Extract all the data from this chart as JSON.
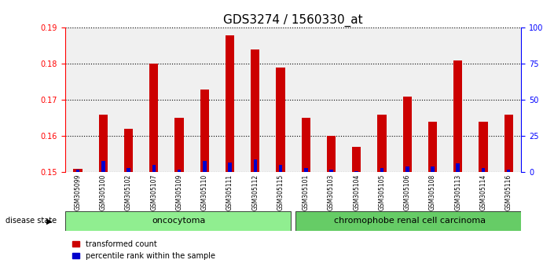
{
  "title": "GDS3274 / 1560330_at",
  "samples": [
    "GSM305099",
    "GSM305100",
    "GSM305102",
    "GSM305107",
    "GSM305109",
    "GSM305110",
    "GSM305111",
    "GSM305112",
    "GSM305115",
    "GSM305101",
    "GSM305103",
    "GSM305104",
    "GSM305105",
    "GSM305106",
    "GSM305108",
    "GSM305113",
    "GSM305114",
    "GSM305116"
  ],
  "transformed_count": [
    0.151,
    0.166,
    0.162,
    0.18,
    0.165,
    0.173,
    0.188,
    0.184,
    0.179,
    0.165,
    0.16,
    0.157,
    0.166,
    0.171,
    0.164,
    0.181,
    0.164,
    0.166
  ],
  "percentile_rank": [
    2,
    8,
    3,
    5,
    2,
    8,
    7,
    9,
    5,
    3,
    2,
    1,
    3,
    4,
    4,
    6,
    3,
    2
  ],
  "ylim_left": [
    0.15,
    0.19
  ],
  "ylim_right": [
    0,
    100
  ],
  "yticks_left": [
    0.15,
    0.16,
    0.17,
    0.18,
    0.19
  ],
  "yticks_right": [
    0,
    25,
    50,
    75,
    100
  ],
  "bar_color_red": "#cc0000",
  "bar_color_blue": "#0000cc",
  "oncocytoma_count": 9,
  "chromophobe_count": 9,
  "group1_label": "oncocytoma",
  "group2_label": "chromophobe renal cell carcinoma",
  "disease_state_label": "disease state",
  "legend_red": "transformed count",
  "legend_blue": "percentile rank within the sample",
  "bg_color": "#ffffff",
  "plot_bg": "#f0f0f0",
  "group1_color": "#90ee90",
  "group2_color": "#66cc66",
  "title_fontsize": 11,
  "axis_fontsize": 8,
  "tick_fontsize": 7
}
